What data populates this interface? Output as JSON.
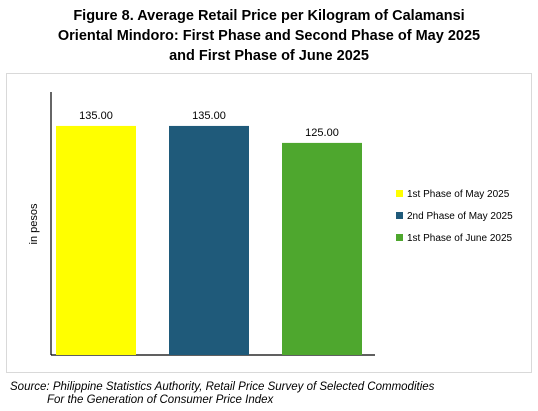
{
  "title": {
    "line1": "Figure 8. Average Retail Price per Kilogram of Calamansi",
    "line2": "Oriental Mindoro: First Phase and Second Phase of May 2025",
    "line3": "and First Phase of June 2025"
  },
  "source": {
    "line1": "Source: Philippine Statistics Authority, Retail Price Survey of Selected Commodities",
    "line2": "For the Generation of Consumer Price Index"
  },
  "chart_data": {
    "type": "bar",
    "title": "Figure 8. Average Retail Price per Kilogram of Calamansi Oriental Mindoro: First Phase and Second Phase of May 2025 and First Phase of June 2025",
    "xlabel": "",
    "ylabel": "in pesos",
    "ylim": [
      0,
      155
    ],
    "grid": false,
    "legend_position": "right",
    "series": [
      {
        "name": "1st Phase of May 2025",
        "value": 135.0,
        "label": "135.00",
        "color": "#ffff00"
      },
      {
        "name": "2nd Phase of May 2025",
        "value": 135.0,
        "label": "135.00",
        "color": "#1f5a7a"
      },
      {
        "name": "1st Phase of June 2025",
        "value": 125.0,
        "label": "125.00",
        "color": "#4ea72e"
      }
    ]
  }
}
